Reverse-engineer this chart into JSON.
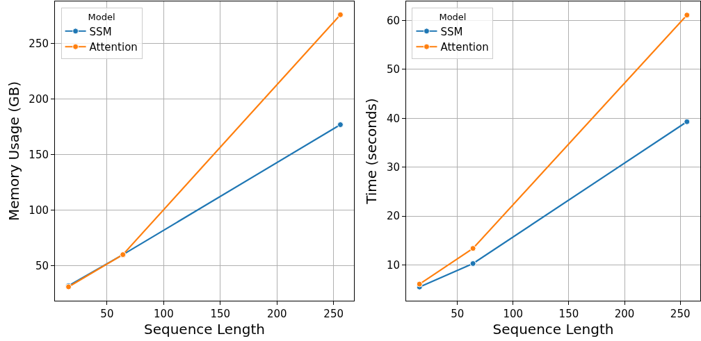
{
  "chart_data": [
    {
      "type": "line",
      "xlabel": "Sequence Length",
      "ylabel": "Memory Usage (GB)",
      "legend_title": "Model",
      "legend": "top left",
      "grid": true,
      "marker": "circle",
      "line_style": "solid",
      "x": [
        16,
        64,
        256
      ],
      "xlim": [
        4,
        268
      ],
      "xticks": [
        50,
        100,
        150,
        200,
        250
      ],
      "ylim": [
        18.5,
        288
      ],
      "yticks": [
        50,
        100,
        150,
        200,
        250
      ],
      "series": [
        {
          "name": "SSM",
          "color": "#1f77b4",
          "values": [
            32,
            60,
            177
          ]
        },
        {
          "name": "Attention",
          "color": "#ff7f0e",
          "values": [
            31,
            60,
            276
          ]
        }
      ]
    },
    {
      "type": "line",
      "xlabel": "Sequence Length",
      "ylabel": "Time (seconds)",
      "legend_title": "Model",
      "legend": "top left",
      "grid": true,
      "marker": "circle",
      "line_style": "solid",
      "x": [
        16,
        64,
        256
      ],
      "xlim": [
        4,
        268
      ],
      "xticks": [
        50,
        100,
        150,
        200,
        250
      ],
      "ylim": [
        2.7,
        63.9
      ],
      "yticks": [
        10,
        20,
        30,
        40,
        50,
        60
      ],
      "series": [
        {
          "name": "SSM",
          "color": "#1f77b4",
          "values": [
            5.5,
            10.3,
            39.3
          ]
        },
        {
          "name": "Attention",
          "color": "#ff7f0e",
          "values": [
            6.1,
            13.4,
            61.1
          ]
        }
      ]
    }
  ]
}
